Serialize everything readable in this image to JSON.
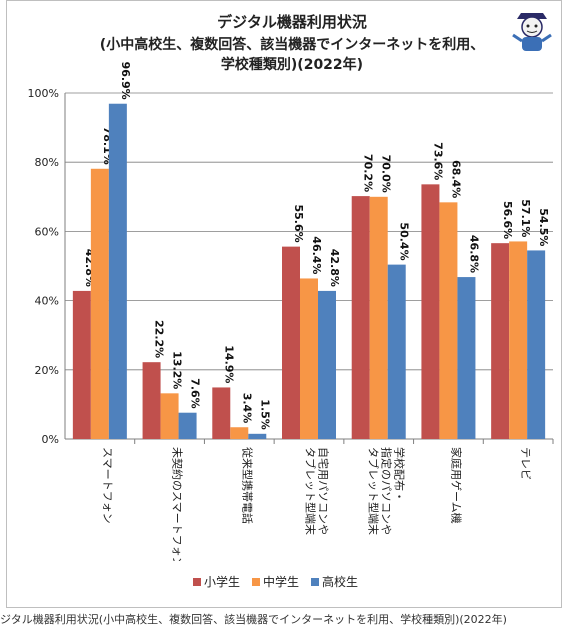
{
  "chart_data": {
    "type": "bar",
    "title": "デジタル機器利用状況",
    "subtitle_lines": [
      "(小中高校生、複数回答、該当機器でインターネットを利用、",
      "学校種類別)(2022年)"
    ],
    "categories": [
      "スマートフォン",
      "未契約のスマートフォン",
      "従来型携帯電話",
      "自宅用パソコンやタブレット型端末",
      "学校配布・指定のパソコンやタブレット型端末",
      "家庭用ゲーム機",
      "テレビ"
    ],
    "category_label_lines": [
      [
        "スマートフォン"
      ],
      [
        "未契約のスマートフォン"
      ],
      [
        "従来型携帯電話"
      ],
      [
        "自宅用パソコンや",
        "タブレット型端末"
      ],
      [
        "学校配布・",
        "指定のパソコンや",
        "タブレット型端末"
      ],
      [
        "家庭用ゲーム機"
      ],
      [
        "テレビ"
      ]
    ],
    "series": [
      {
        "name": "小学生",
        "color": "#c0504d",
        "values": [
          42.8,
          22.2,
          14.9,
          55.6,
          70.2,
          73.6,
          56.6
        ],
        "labels": [
          "42.8%",
          "22.2%",
          "14.9%",
          "55.6%",
          "70.2%",
          "73.6%",
          "56.6%"
        ]
      },
      {
        "name": "中学生",
        "color": "#f79646",
        "values": [
          78.1,
          13.2,
          3.4,
          46.4,
          70.0,
          68.4,
          57.1
        ],
        "labels": [
          "78.1%",
          "13.2%",
          "3.4%",
          "46.4%",
          "70.0%",
          "68.4%",
          "57.1%"
        ]
      },
      {
        "name": "高校生",
        "color": "#4f81bd",
        "values": [
          96.9,
          7.6,
          1.5,
          42.8,
          50.4,
          46.8,
          54.5
        ],
        "labels": [
          "96.9%",
          "7.6%",
          "1.5%",
          "42.8%",
          "50.4%",
          "46.8%",
          "54.5%"
        ]
      }
    ],
    "yticks": [
      "0%",
      "20%",
      "40%",
      "60%",
      "80%",
      "100%"
    ],
    "ylim": [
      0,
      100
    ],
    "grid": true,
    "legend_position": "bottom"
  },
  "caption": "ジタル機器利用状況(小中高校生、複数回答、該当機器でインターネットを利用、学校種類別)(2022年)"
}
